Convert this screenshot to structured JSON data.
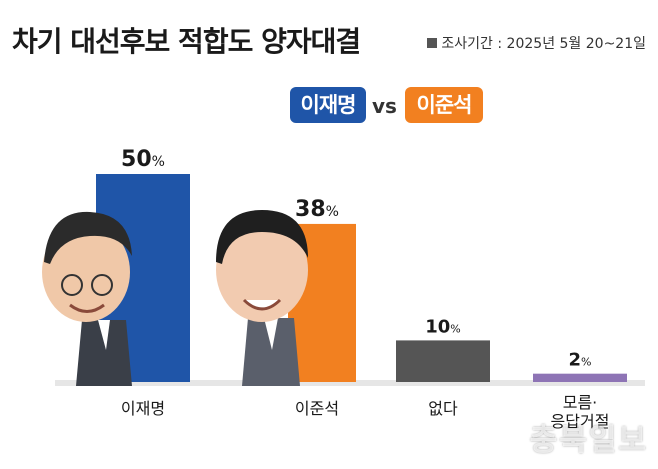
{
  "header": {
    "title": "차기 대선후보 적합도 양자대결",
    "period": "조사기간 : 2025년 5월 20~21일"
  },
  "legend": {
    "candidate1": "이재명",
    "vs": "vs",
    "candidate2": "이준석"
  },
  "colors": {
    "candidate1": "#1f55a8",
    "candidate2": "#f28020",
    "none": "#555555",
    "unknown": "#8e74b5"
  },
  "chart_data": {
    "type": "bar",
    "categories": [
      "이재명",
      "이준석",
      "없다",
      "모름·응답거절"
    ],
    "values": [
      50,
      38,
      10,
      2
    ],
    "unit": "%",
    "ylim": [
      0,
      50
    ],
    "grid": false
  },
  "watermark": "충북일보"
}
